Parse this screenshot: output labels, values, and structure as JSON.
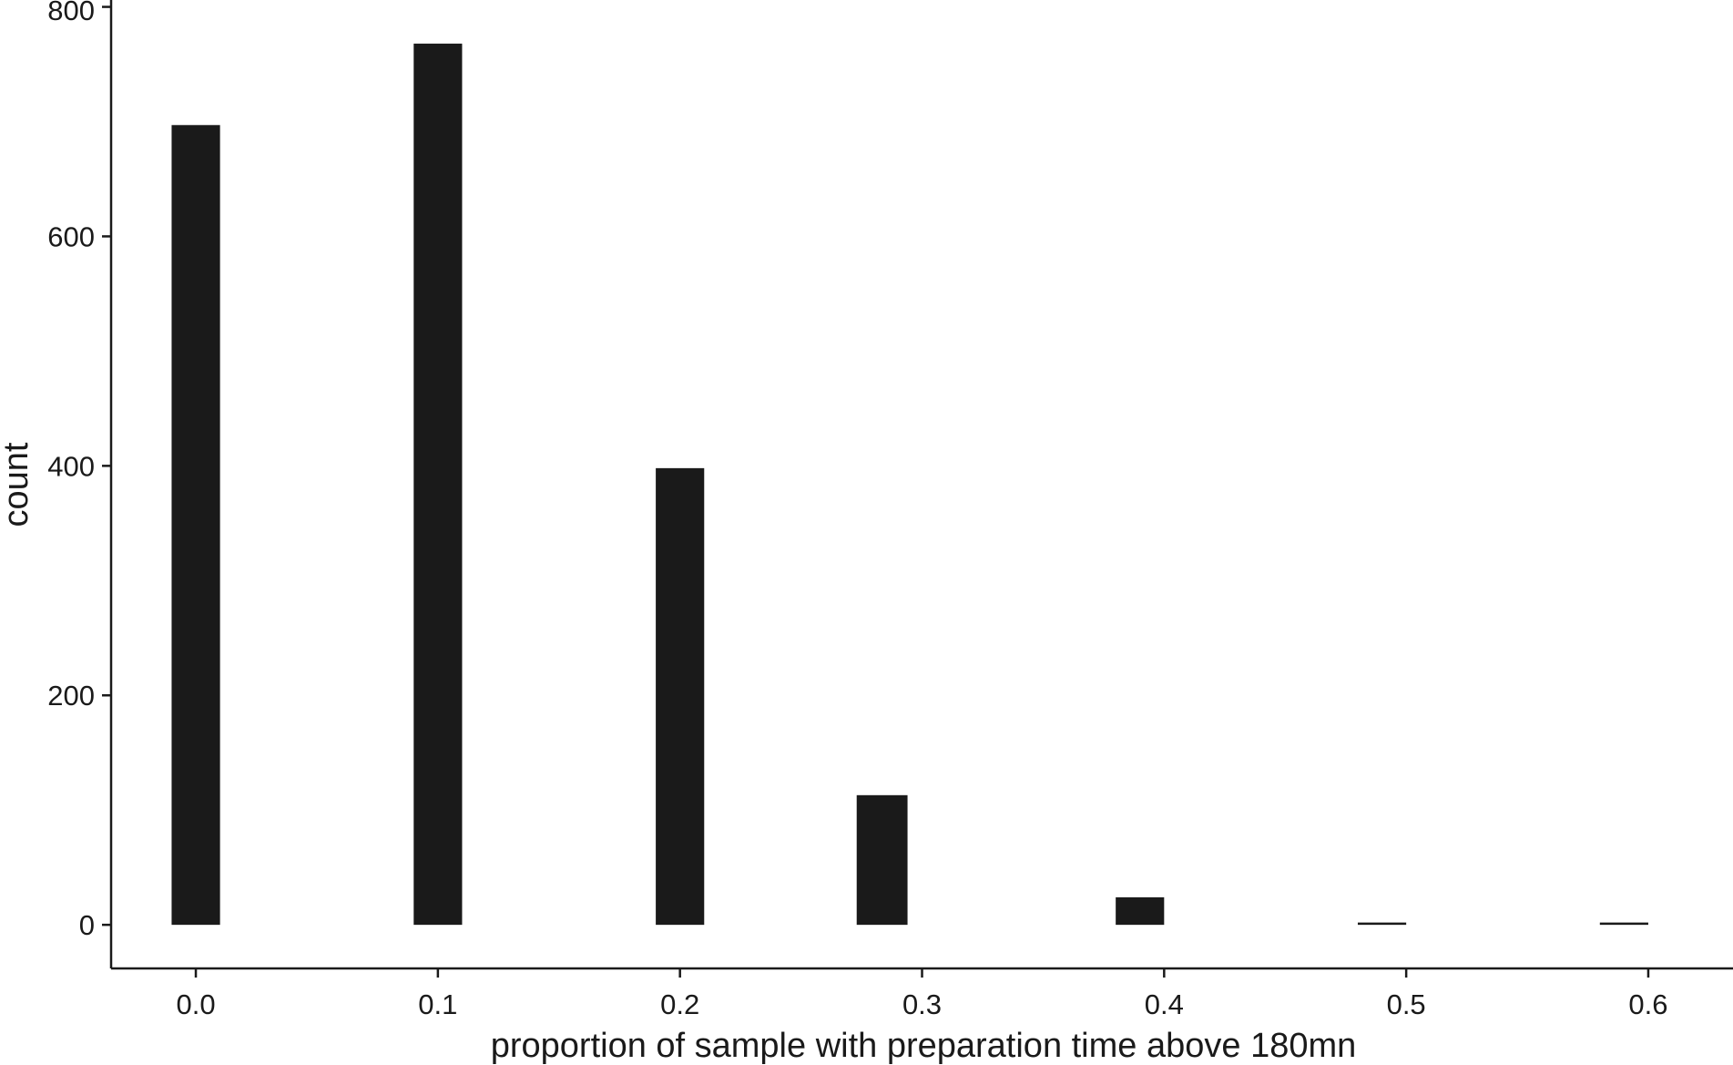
{
  "chart_data": {
    "type": "bar",
    "title": "",
    "xlabel": "proportion of sample with preparation time above 180mn",
    "ylabel": "count",
    "xlim": [
      -0.035,
      0.635
    ],
    "ylim": [
      -38,
      806
    ],
    "x_ticks": [
      0.0,
      0.1,
      0.2,
      0.3,
      0.4,
      0.5,
      0.6
    ],
    "x_tick_labels": [
      "0.0",
      "0.1",
      "0.2",
      "0.3",
      "0.4",
      "0.5",
      "0.6"
    ],
    "y_ticks": [
      0,
      200,
      400,
      600,
      800
    ],
    "y_tick_labels": [
      "0",
      "200",
      "400",
      "600",
      "800"
    ],
    "bar_color": "#1a1a1a",
    "bars": [
      {
        "x_start": -0.01,
        "x_end": 0.01,
        "value": 697
      },
      {
        "x_start": 0.09,
        "x_end": 0.11,
        "value": 768
      },
      {
        "x_start": 0.19,
        "x_end": 0.21,
        "value": 398
      },
      {
        "x_start": 0.273,
        "x_end": 0.294,
        "value": 113
      },
      {
        "x_start": 0.38,
        "x_end": 0.4,
        "value": 24
      },
      {
        "x_start": 0.48,
        "x_end": 0.5,
        "value": 2
      },
      {
        "x_start": 0.58,
        "x_end": 0.6,
        "value": 2
      }
    ],
    "grid": false,
    "legend": "none"
  }
}
